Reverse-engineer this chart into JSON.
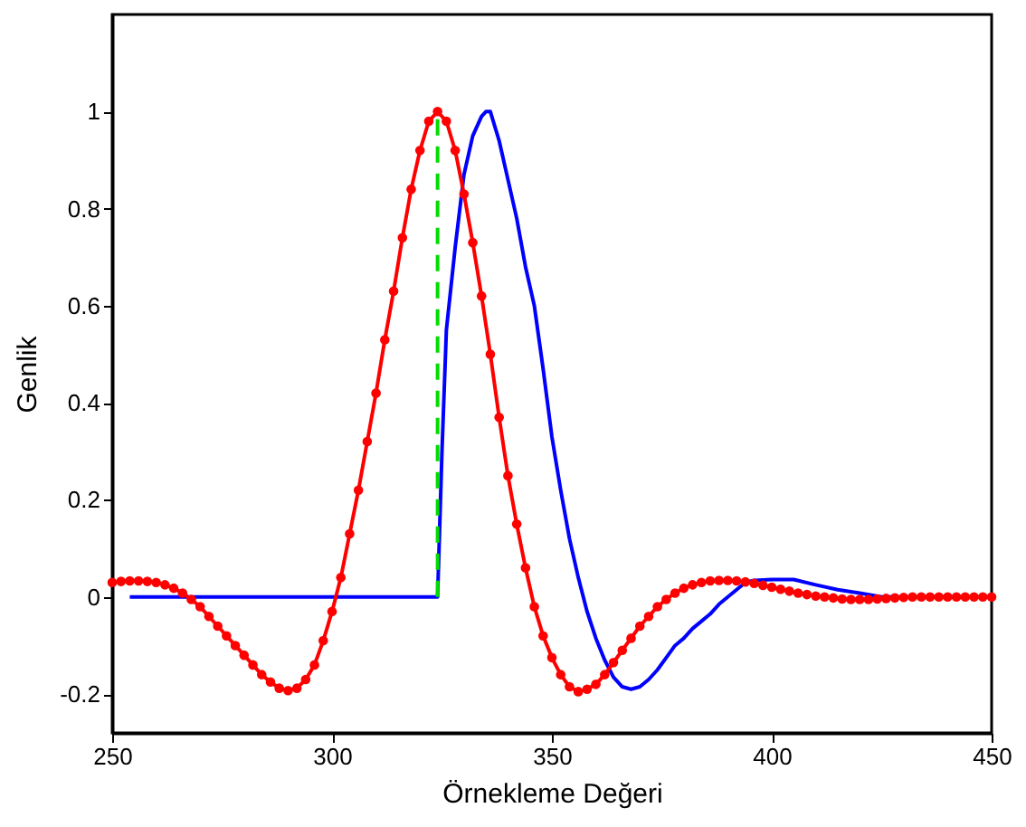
{
  "chart_data": {
    "type": "line",
    "xlabel": "Örnekleme Değeri",
    "ylabel": "Genlik",
    "xlim": [
      250,
      450
    ],
    "xticks": [
      250,
      300,
      350,
      400,
      450
    ],
    "ylim": [
      -0.28,
      1.2
    ],
    "yticks": [
      -0.2,
      0,
      0.2,
      0.4,
      0.6,
      0.8,
      1
    ],
    "grid": false,
    "x": [
      250,
      252,
      254,
      256,
      258,
      260,
      262,
      264,
      266,
      268,
      270,
      272,
      274,
      276,
      278,
      280,
      282,
      284,
      286,
      288,
      290,
      292,
      294,
      296,
      298,
      300,
      302,
      304,
      306,
      308,
      310,
      312,
      314,
      316,
      318,
      320,
      322,
      324,
      326,
      328,
      330,
      332,
      334,
      336,
      338,
      340,
      342,
      344,
      346,
      348,
      350,
      352,
      354,
      356,
      358,
      360,
      362,
      364,
      366,
      368,
      370,
      372,
      374,
      376,
      378,
      380,
      382,
      384,
      386,
      388,
      390,
      392,
      394,
      396,
      398,
      400,
      402,
      404,
      406,
      408,
      410,
      412,
      414,
      416,
      418,
      420,
      422,
      424,
      426,
      428,
      430,
      432,
      434,
      436,
      438,
      440,
      442,
      444,
      446,
      448,
      450
    ],
    "series": [
      {
        "color": "#0000ff",
        "line_style": "solid",
        "marker": "none",
        "x": [
          254,
          324,
          325,
          326,
          328,
          330,
          332,
          334,
          335,
          336,
          338,
          340,
          342,
          344,
          346,
          348,
          350,
          352,
          354,
          356,
          358,
          360,
          362,
          364,
          366,
          368,
          370,
          372,
          374,
          376,
          378,
          380,
          382,
          384,
          386,
          388,
          390,
          392,
          394,
          396,
          400,
          405,
          410,
          415,
          420,
          425,
          430
        ],
        "values": [
          0,
          0,
          0.3,
          0.55,
          0.72,
          0.87,
          0.95,
          0.99,
          1.0,
          1.0,
          0.94,
          0.86,
          0.78,
          0.68,
          0.6,
          0.47,
          0.33,
          0.22,
          0.12,
          0.04,
          -0.03,
          -0.085,
          -0.13,
          -0.165,
          -0.185,
          -0.19,
          -0.185,
          -0.17,
          -0.15,
          -0.125,
          -0.1,
          -0.085,
          -0.065,
          -0.05,
          -0.035,
          -0.015,
          0.0,
          0.015,
          0.03,
          0.034,
          0.036,
          0.036,
          0.025,
          0.015,
          0.008,
          0,
          0
        ]
      },
      {
        "color": "#ff0000",
        "line_style": "solid",
        "marker": "circle",
        "values": [
          0.03,
          0.032,
          0.033,
          0.033,
          0.032,
          0.03,
          0.025,
          0.018,
          0.008,
          -0.005,
          -0.02,
          -0.04,
          -0.06,
          -0.08,
          -0.1,
          -0.12,
          -0.14,
          -0.16,
          -0.175,
          -0.188,
          -0.193,
          -0.188,
          -0.17,
          -0.14,
          -0.09,
          -0.03,
          0.04,
          0.13,
          0.22,
          0.32,
          0.42,
          0.53,
          0.63,
          0.74,
          0.84,
          0.92,
          0.98,
          1.0,
          0.98,
          0.92,
          0.83,
          0.73,
          0.62,
          0.5,
          0.37,
          0.25,
          0.15,
          0.06,
          -0.02,
          -0.08,
          -0.125,
          -0.16,
          -0.185,
          -0.195,
          -0.19,
          -0.18,
          -0.16,
          -0.135,
          -0.11,
          -0.085,
          -0.06,
          -0.04,
          -0.02,
          -0.005,
          0.008,
          0.018,
          0.025,
          0.03,
          0.033,
          0.034,
          0.034,
          0.033,
          0.031,
          0.028,
          0.024,
          0.02,
          0.016,
          0.012,
          0.008,
          0.005,
          0.002,
          0.0,
          -0.002,
          -0.004,
          -0.005,
          -0.005,
          -0.005,
          -0.004,
          -0.003,
          -0.002,
          -0.001,
          0,
          0,
          0,
          0,
          0,
          0,
          0,
          0,
          0,
          0
        ]
      },
      {
        "color": "#00dd00",
        "line_style": "dashed",
        "marker": "none",
        "x": [
          324,
          324
        ],
        "values": [
          0,
          1
        ]
      }
    ]
  }
}
